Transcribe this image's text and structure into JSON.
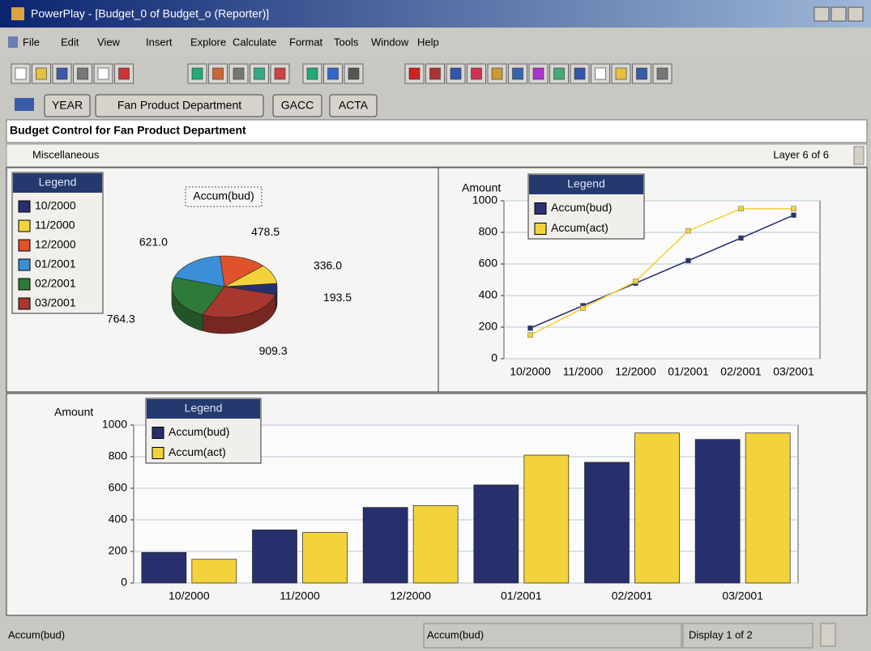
{
  "window": {
    "title": "PowerPlay - [Budget_0 of Budget_o (Reporter)]"
  },
  "menu": [
    "File",
    "Edit",
    "View",
    "Insert",
    "Explore",
    "Calculate",
    "Format",
    "Tools",
    "Window",
    "Help"
  ],
  "tabs": [
    "YEAR",
    "Fan Product Department",
    "GACC",
    "ACTA"
  ],
  "report": {
    "title": "Budget Control for Fan Product Department",
    "subtitle": "Miscellaneous",
    "layer": "Layer 6 of 6"
  },
  "chart_data": [
    {
      "type": "pie",
      "title": "Accum(bud)",
      "legend_title": "Legend",
      "categories": [
        "10/2000",
        "11/2000",
        "12/2000",
        "01/2001",
        "02/2001",
        "03/2001"
      ],
      "values": [
        193.5,
        336.0,
        478.5,
        621.0,
        764.3,
        909.3
      ],
      "value_labels": [
        "193.5",
        "336.0",
        "478.5",
        "621.0",
        "764.3",
        "909.3"
      ],
      "colors": [
        "#27306c",
        "#f3d33b",
        "#e0522b",
        "#3b8fd6",
        "#2f7a38",
        "#a8382f"
      ]
    },
    {
      "type": "line",
      "y_label": "Amount",
      "legend_title": "Legend",
      "categories": [
        "10/2000",
        "11/2000",
        "12/2000",
        "01/2001",
        "02/2001",
        "03/2001"
      ],
      "series": [
        {
          "name": "Accum(bud)",
          "color": "#2a3372",
          "values": [
            193.5,
            336.0,
            478.5,
            621.0,
            764.3,
            909.3
          ]
        },
        {
          "name": "Accum(act)",
          "color": "#f3d33b",
          "values": [
            150,
            320,
            490,
            810,
            950,
            950
          ]
        }
      ],
      "ylim": [
        0,
        1000
      ],
      "yticks": [
        0,
        200,
        400,
        600,
        800,
        1000
      ],
      "grid": true
    },
    {
      "type": "bar",
      "y_label": "Amount",
      "legend_title": "Legend",
      "categories": [
        "10/2000",
        "11/2000",
        "12/2000",
        "01/2001",
        "02/2001",
        "03/2001"
      ],
      "series": [
        {
          "name": "Accum(bud)",
          "color": "#27306c",
          "values": [
            193.5,
            336.0,
            478.5,
            621.0,
            764.3,
            909.3
          ]
        },
        {
          "name": "Accum(act)",
          "color": "#f3d33b",
          "values": [
            150,
            320,
            490,
            810,
            950,
            950
          ]
        }
      ],
      "ylim": [
        0,
        1000
      ],
      "yticks": [
        0,
        200,
        400,
        600,
        800,
        1000
      ],
      "grid": true
    }
  ],
  "status": {
    "left": "Accum(bud)",
    "middle": "Accum(bud)",
    "right": "Display 1 of 2"
  }
}
